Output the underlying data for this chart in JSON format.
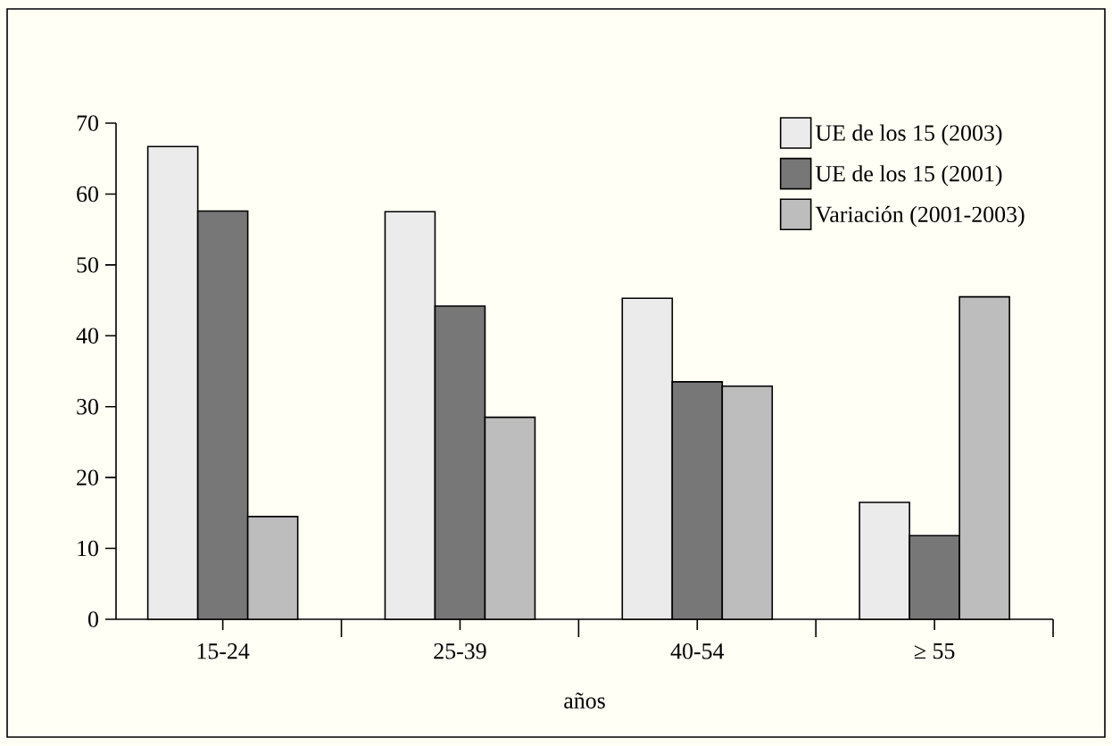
{
  "chart_data": {
    "type": "bar",
    "xlabel": "años",
    "categories": [
      "15-24",
      "25-39",
      "40-54",
      "≥ 55"
    ],
    "series": [
      {
        "name": "UE de los 15 (2003)",
        "color": "#ebebeb",
        "values": [
          66.7,
          57.5,
          45.3,
          16.5
        ]
      },
      {
        "name": "UE de los 15 (2001)",
        "color": "#777777",
        "values": [
          57.6,
          44.2,
          33.5,
          11.8
        ]
      },
      {
        "name": "Variación (2001-2003)",
        "color": "#bdbdbd",
        "values": [
          14.5,
          28.5,
          32.9,
          45.5
        ]
      }
    ],
    "ylim": [
      0,
      70
    ],
    "yticks": [
      0,
      10,
      20,
      30,
      40,
      50,
      60,
      70
    ],
    "legend": "top right"
  }
}
